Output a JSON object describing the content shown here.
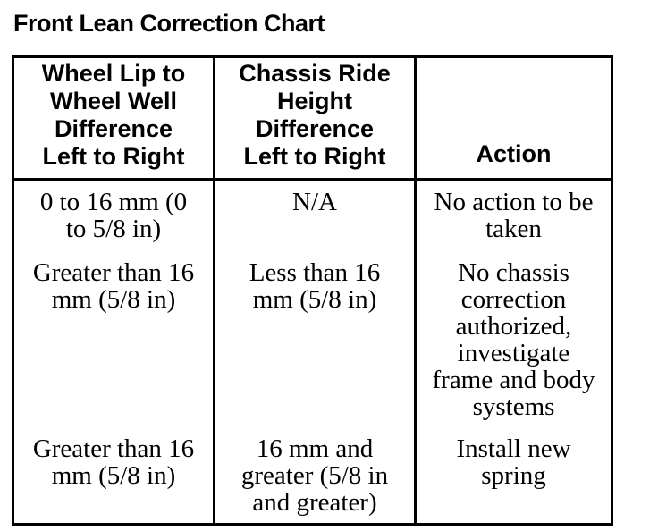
{
  "page": {
    "background_color": "#ffffff",
    "text_color": "#000000",
    "border_color": "#000000"
  },
  "title": "Front Lean Correction Chart",
  "table": {
    "columns": [
      {
        "header": "Wheel Lip to\nWheel Well\nDifference\nLeft to Right"
      },
      {
        "header": "Chassis Ride\nHeight\nDifference\nLeft to Right"
      },
      {
        "header": "Action"
      }
    ],
    "rows": [
      {
        "cells": [
          "0 to 16 mm (0\nto 5/8 in)",
          "N/A",
          "No action to be\ntaken"
        ]
      },
      {
        "cells": [
          "Greater than 16\nmm (5/8 in)",
          "Less than 16\nmm (5/8 in)",
          "No chassis\ncorrection\nauthorized,\ninvestigate\nframe and body\nsystems"
        ]
      },
      {
        "cells": [
          "Greater than 16\nmm (5/8 in)",
          "16 mm and\ngreater (5/8 in\nand greater)",
          "Install new\nspring"
        ]
      }
    ]
  }
}
